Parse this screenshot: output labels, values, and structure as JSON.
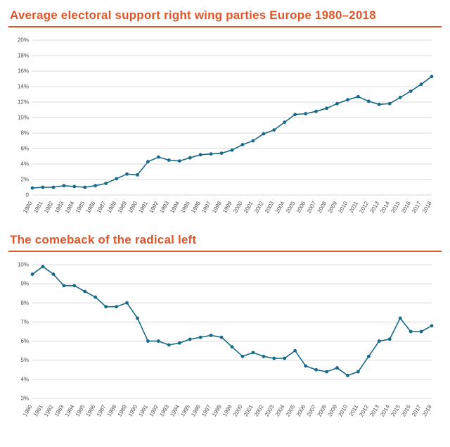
{
  "page": {
    "accent_color": "#e0562a",
    "line_color": "#17698a",
    "grid_color": "#d9d9d9",
    "text_color": "#4d4d4d"
  },
  "chart_data": [
    {
      "type": "line",
      "title": "Average electoral support right wing parties Europe 1980–2018",
      "xlabel": "",
      "ylabel": "",
      "ylim": [
        0,
        20
      ],
      "grid": true,
      "legend": "none",
      "accent_color": "#e0562a",
      "line_color": "#17698a",
      "grid_color": "#d9d9d9",
      "text_color": "#4d4d4d",
      "yticks": [
        {
          "value": 0,
          "label": "0"
        },
        {
          "value": 2,
          "label": "2%"
        },
        {
          "value": 4,
          "label": "4%"
        },
        {
          "value": 6,
          "label": "6%"
        },
        {
          "value": 8,
          "label": "8%"
        },
        {
          "value": 10,
          "label": "10%"
        },
        {
          "value": 12,
          "label": "12%"
        },
        {
          "value": 14,
          "label": "14%"
        },
        {
          "value": 16,
          "label": "16%"
        },
        {
          "value": 18,
          "label": "18%"
        },
        {
          "value": 20,
          "label": "20%"
        }
      ],
      "x": [
        "1980",
        "1981",
        "1982",
        "1983",
        "1984",
        "1985",
        "1986",
        "1987",
        "1988",
        "1989",
        "1990",
        "1991",
        "1992",
        "1993",
        "1994",
        "1995",
        "1996",
        "1997",
        "1998",
        "1999",
        "2000",
        "2001",
        "2002",
        "2003",
        "2004",
        "2005",
        "2006",
        "2007",
        "2008",
        "2009",
        "2010",
        "2011",
        "2012",
        "2013",
        "2014",
        "2015",
        "2016",
        "2017",
        "2018"
      ],
      "values": [
        0.9,
        1.0,
        1.0,
        1.2,
        1.1,
        1.0,
        1.2,
        1.5,
        2.1,
        2.7,
        2.6,
        4.3,
        4.9,
        4.5,
        4.4,
        4.8,
        5.2,
        5.3,
        5.4,
        5.8,
        6.5,
        7.0,
        7.9,
        8.4,
        9.4,
        10.4,
        10.5,
        10.8,
        11.2,
        11.8,
        12.3,
        12.7,
        12.1,
        11.7,
        11.8,
        12.6,
        13.4,
        14.3,
        15.3
      ]
    },
    {
      "type": "line",
      "title": "The comeback of the radical left",
      "xlabel": "",
      "ylabel": "",
      "ylim": [
        3,
        10
      ],
      "grid": true,
      "legend": "none",
      "accent_color": "#e0562a",
      "line_color": "#17698a",
      "grid_color": "#d9d9d9",
      "text_color": "#4d4d4d",
      "yticks": [
        {
          "value": 3,
          "label": "3%"
        },
        {
          "value": 4,
          "label": "4%"
        },
        {
          "value": 5,
          "label": "5%"
        },
        {
          "value": 6,
          "label": "6%"
        },
        {
          "value": 7,
          "label": "7%"
        },
        {
          "value": 8,
          "label": "8%"
        },
        {
          "value": 9,
          "label": "9%"
        },
        {
          "value": 10,
          "label": "10%"
        }
      ],
      "x": [
        "1980",
        "1981",
        "1982",
        "1983",
        "1984",
        "1985",
        "1986",
        "1987",
        "1988",
        "1989",
        "1990",
        "1991",
        "1992",
        "1993",
        "1994",
        "1995",
        "1996",
        "1997",
        "1998",
        "1999",
        "2000",
        "2001",
        "2002",
        "2003",
        "2004",
        "2005",
        "2006",
        "2007",
        "2008",
        "2009",
        "2010",
        "2011",
        "2012",
        "2013",
        "2014",
        "2015",
        "2016",
        "2017",
        "2018"
      ],
      "values": [
        9.5,
        9.9,
        9.5,
        8.9,
        8.9,
        8.6,
        8.3,
        7.8,
        7.8,
        8.0,
        7.2,
        6.0,
        6.0,
        5.8,
        5.9,
        6.1,
        6.2,
        6.3,
        6.2,
        5.7,
        5.2,
        5.4,
        5.2,
        5.1,
        5.1,
        5.5,
        4.7,
        4.5,
        4.4,
        4.6,
        4.2,
        4.4,
        5.2,
        6.0,
        6.1,
        7.2,
        6.5,
        6.5,
        6.8
      ]
    }
  ]
}
